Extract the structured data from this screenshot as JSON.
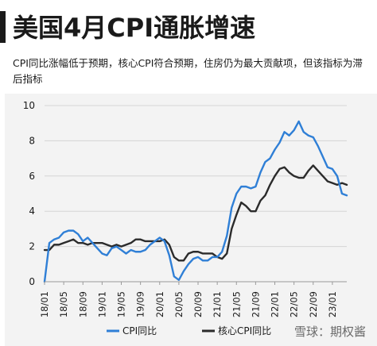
{
  "title": "美国4月CPI通胀增速",
  "subtitle": "CPI同比涨幅低于预期，核心CPI符合预期，住房仍为最大贡献项，但该指标为滞后指标",
  "watermark": "雪球：期权酱",
  "colors": {
    "cpi": "#2f7fd6",
    "core": "#2b2b2b",
    "grid": "#d4d4d4",
    "text": "#1a1a1a"
  },
  "chart_data": {
    "type": "line",
    "title": "美国4月CPI通胀增速",
    "xlabel": "",
    "ylabel": "",
    "ylim": [
      0,
      10
    ],
    "yticks": [
      0,
      2,
      4,
      6,
      8,
      10
    ],
    "grid": "horizontal",
    "legend": "bottom",
    "x_start": "2018-01",
    "x_end": "2023-04",
    "xticks": [
      "18/01",
      "18/05",
      "18/09",
      "19/01",
      "19/05",
      "19/09",
      "20/01",
      "20/05",
      "20/09",
      "21/01",
      "21/05",
      "21/09",
      "22/01",
      "22/05",
      "22/09",
      "23/01"
    ],
    "series": [
      {
        "name": "CPI同比",
        "color": "#2f7fd6",
        "values": [
          0.0,
          2.2,
          2.4,
          2.5,
          2.8,
          2.9,
          2.9,
          2.7,
          2.3,
          2.5,
          2.2,
          1.9,
          1.6,
          1.5,
          1.9,
          2.0,
          1.8,
          1.6,
          1.8,
          1.7,
          1.7,
          1.8,
          2.1,
          2.3,
          2.5,
          2.3,
          1.5,
          0.3,
          0.1,
          0.6,
          1.0,
          1.3,
          1.4,
          1.2,
          1.2,
          1.4,
          1.4,
          1.7,
          2.6,
          4.2,
          5.0,
          5.4,
          5.4,
          5.3,
          5.4,
          6.2,
          6.8,
          7.0,
          7.5,
          7.9,
          8.5,
          8.3,
          8.6,
          9.1,
          8.5,
          8.3,
          8.2,
          7.7,
          7.1,
          6.5,
          6.4,
          6.0,
          5.0,
          4.9
        ]
      },
      {
        "name": "核心CPI同比",
        "color": "#2b2b2b",
        "values": [
          1.8,
          1.8,
          2.1,
          2.1,
          2.2,
          2.3,
          2.4,
          2.2,
          2.2,
          2.1,
          2.2,
          2.2,
          2.2,
          2.1,
          2.0,
          2.1,
          2.0,
          2.1,
          2.2,
          2.4,
          2.4,
          2.3,
          2.3,
          2.3,
          2.3,
          2.4,
          2.1,
          1.4,
          1.2,
          1.2,
          1.6,
          1.7,
          1.7,
          1.6,
          1.6,
          1.6,
          1.4,
          1.3,
          1.6,
          3.0,
          3.8,
          4.5,
          4.3,
          4.0,
          4.0,
          4.6,
          4.9,
          5.5,
          6.0,
          6.4,
          6.5,
          6.2,
          6.0,
          5.9,
          5.9,
          6.3,
          6.6,
          6.3,
          6.0,
          5.7,
          5.6,
          5.5,
          5.6,
          5.5
        ]
      }
    ]
  }
}
